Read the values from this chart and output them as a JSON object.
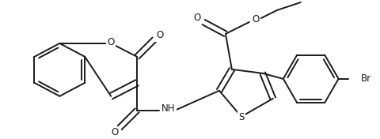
{
  "background_color": "#ffffff",
  "line_color": "#1a1a1a",
  "line_width": 1.4,
  "figsize": [
    4.81,
    1.76
  ],
  "dpi": 100,
  "xlim": [
    0,
    481
  ],
  "ylim": [
    0,
    176
  ]
}
